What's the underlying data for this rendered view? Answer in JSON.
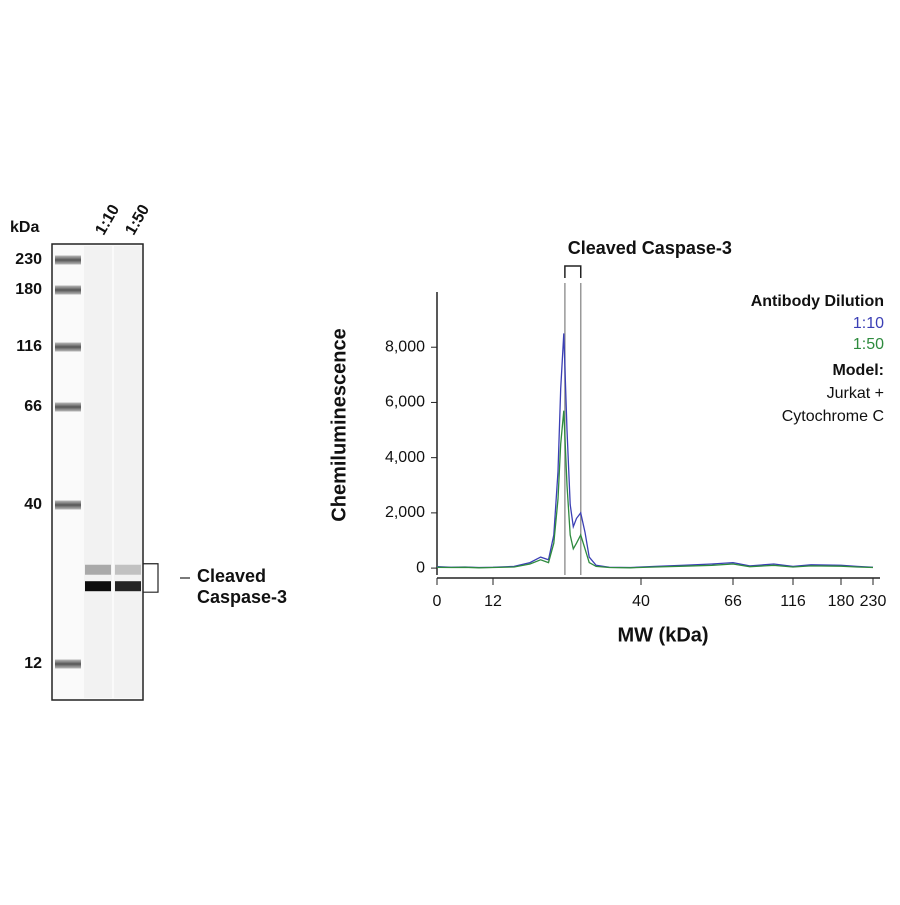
{
  "chart_data": [
    {
      "type": "blot",
      "ylabel": "kDa",
      "yticks": [
        230,
        180,
        116,
        66,
        40,
        12
      ],
      "lanes": [
        "1:10",
        "1:50"
      ],
      "bands_mw": [
        28.6,
        25.7
      ],
      "series": [
        {
          "name": "1:10",
          "values": [
            0.3,
            0.95
          ]
        },
        {
          "name": "1:50",
          "values": [
            0.2,
            0.85
          ]
        }
      ],
      "annotation": [
        "Cleaved",
        "Caspase-3"
      ]
    },
    {
      "type": "line",
      "title": "Cleaved Caspase-3",
      "ylabel": "Chemiluminescence",
      "xlabel": "MW (kDa)",
      "xlim": [
        0,
        230
      ],
      "xticks": [
        0,
        12,
        40,
        66,
        116,
        180,
        230
      ],
      "ylim": [
        -250,
        10000
      ],
      "yticks": [
        0,
        {
          "value": 2000,
          "label": "2,000"
        },
        {
          "value": 4000,
          "label": "4,000"
        },
        {
          "value": 6000,
          "label": "6,000"
        },
        {
          "value": 8000,
          "label": "8,000"
        }
      ],
      "highlight": [
        25.6,
        28.6
      ],
      "legend_title": "Antibody Dilution",
      "x": [
        0,
        3,
        6,
        9,
        12,
        16,
        19,
        21,
        22.5,
        23.5,
        24.3,
        24.8,
        25.4,
        26,
        26.6,
        27.2,
        27.8,
        28.6,
        29.4,
        30.2,
        31.5,
        34,
        38,
        44,
        52,
        60,
        66,
        80,
        100,
        116,
        140,
        180,
        205,
        230
      ],
      "series": [
        {
          "name": "1:10",
          "color": "#3b3fb5",
          "values": [
            50,
            30,
            40,
            20,
            30,
            60,
            200,
            400,
            300,
            1200,
            3500,
            6500,
            8500,
            5000,
            2300,
            1500,
            1800,
            2000,
            1300,
            400,
            100,
            30,
            20,
            60,
            100,
            150,
            200,
            80,
            150,
            60,
            120,
            100,
            60,
            30
          ]
        },
        {
          "name": "1:50",
          "color": "#2e8b3e",
          "values": [
            30,
            20,
            30,
            10,
            20,
            40,
            150,
            300,
            200,
            900,
            2500,
            4500,
            5700,
            3000,
            1200,
            700,
            900,
            1200,
            700,
            200,
            60,
            20,
            10,
            40,
            70,
            100,
            150,
            50,
            100,
            40,
            80,
            70,
            40,
            20
          ]
        }
      ],
      "model_label": "Model:",
      "model": [
        "Jurkat +",
        "Cytochrome C"
      ]
    }
  ]
}
